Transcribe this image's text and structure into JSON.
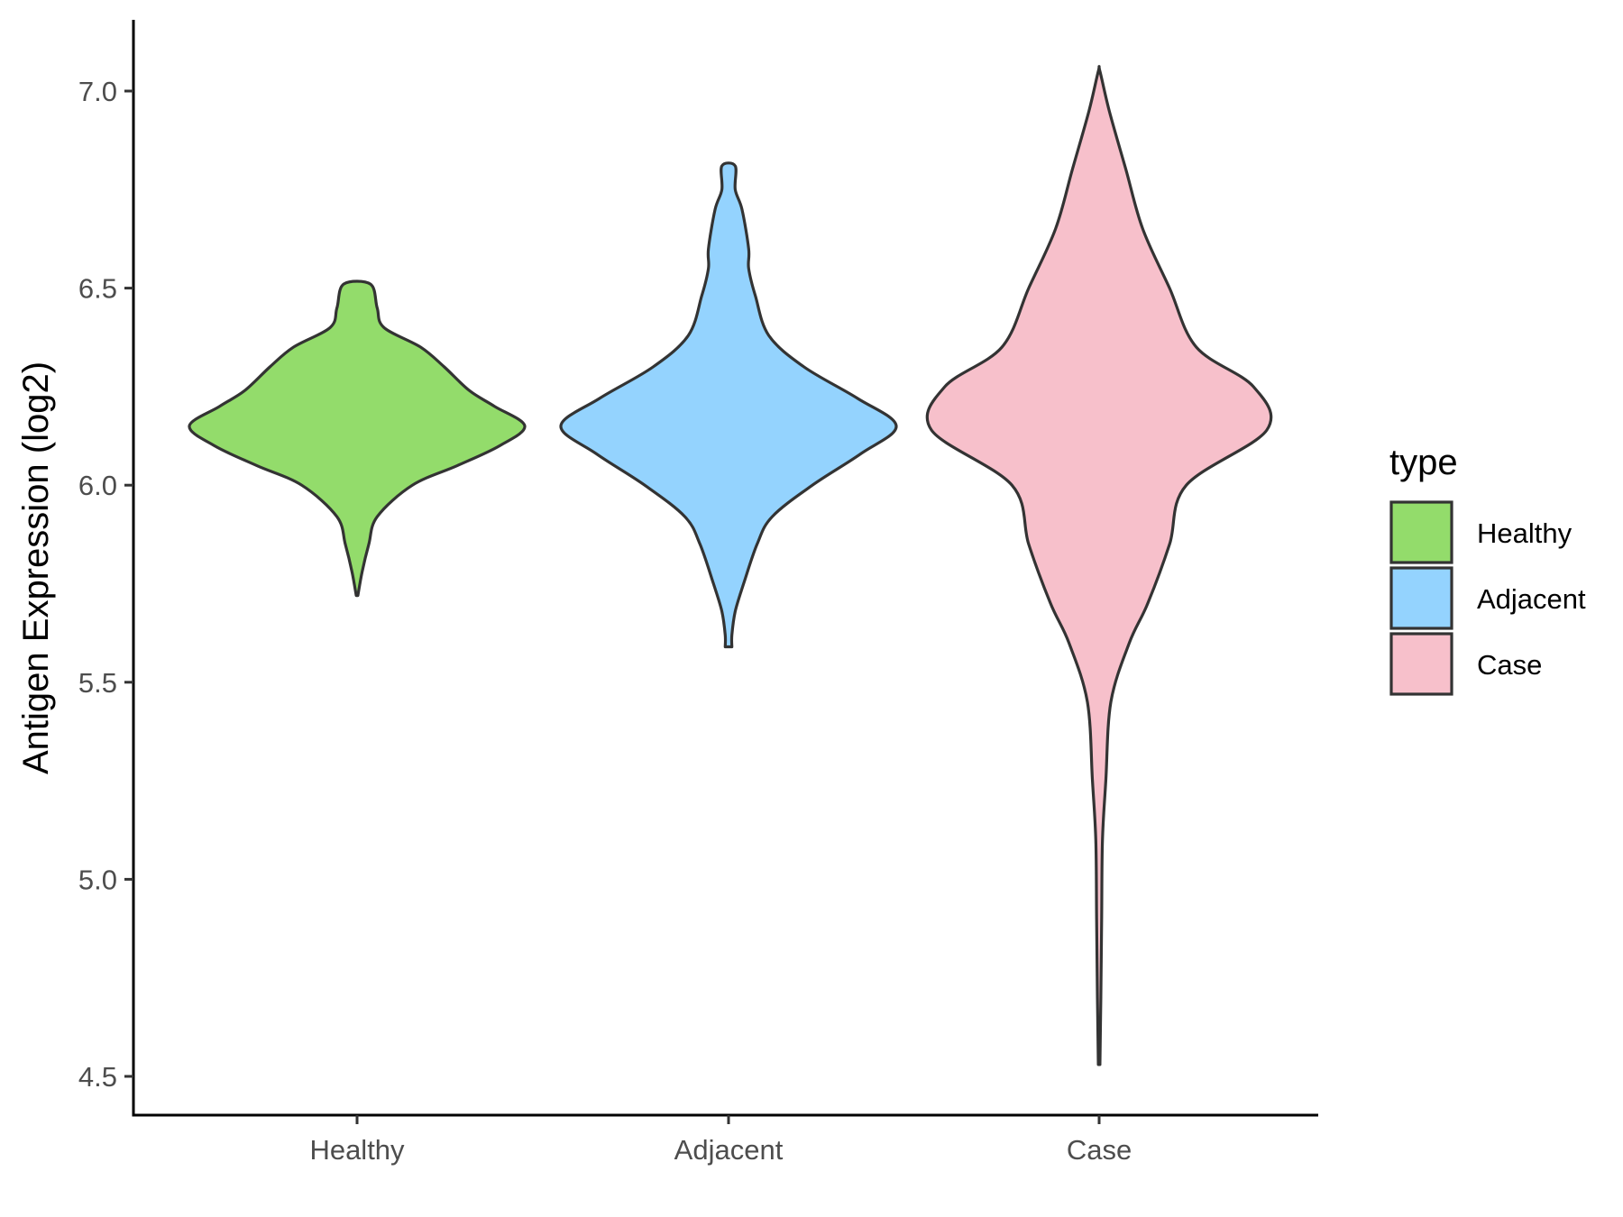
{
  "chart_data": {
    "type": "violin",
    "ylabel": "Antigen Expression (log2)",
    "xlabel": "",
    "ylim": [
      4.4,
      7.2
    ],
    "yticks": [
      4.5,
      5.0,
      5.5,
      6.0,
      6.5,
      7.0
    ],
    "ytick_labels": [
      "4.5",
      "5.0",
      "5.5",
      "6.0",
      "6.5",
      "7.0"
    ],
    "categories": [
      "Healthy",
      "Adjacent",
      "Case"
    ],
    "grid": false,
    "legend": {
      "title": "type",
      "position": "right",
      "entries": [
        {
          "label": "Healthy",
          "color": "#93dc6b"
        },
        {
          "label": "Adjacent",
          "color": "#94d3fe"
        },
        {
          "label": "Case",
          "color": "#f7c0cb"
        }
      ]
    },
    "series": [
      {
        "category": "Healthy",
        "color": "#93dc6b",
        "min": 5.72,
        "max": 6.51,
        "density_profile": [
          [
            5.72,
            0.005
          ],
          [
            5.78,
            0.03
          ],
          [
            5.85,
            0.07
          ],
          [
            5.92,
            0.12
          ],
          [
            6.0,
            0.33
          ],
          [
            6.05,
            0.6
          ],
          [
            6.1,
            0.85
          ],
          [
            6.15,
            1.0
          ],
          [
            6.2,
            0.82
          ],
          [
            6.24,
            0.67
          ],
          [
            6.3,
            0.52
          ],
          [
            6.35,
            0.38
          ],
          [
            6.4,
            0.16
          ],
          [
            6.45,
            0.12
          ],
          [
            6.51,
            0.08
          ]
        ]
      },
      {
        "category": "Adjacent",
        "color": "#94d3fe",
        "min": 5.59,
        "max": 6.81,
        "density_profile": [
          [
            5.59,
            0.02
          ],
          [
            5.62,
            0.02
          ],
          [
            5.68,
            0.04
          ],
          [
            5.75,
            0.09
          ],
          [
            5.85,
            0.17
          ],
          [
            5.92,
            0.26
          ],
          [
            6.0,
            0.5
          ],
          [
            6.08,
            0.79
          ],
          [
            6.15,
            1.0
          ],
          [
            6.22,
            0.77
          ],
          [
            6.3,
            0.45
          ],
          [
            6.38,
            0.24
          ],
          [
            6.48,
            0.16
          ],
          [
            6.55,
            0.12
          ],
          [
            6.6,
            0.12
          ],
          [
            6.7,
            0.08
          ],
          [
            6.75,
            0.04
          ],
          [
            6.81,
            0.04
          ]
        ]
      },
      {
        "category": "Case",
        "color": "#f7c0cb",
        "min": 4.53,
        "max": 7.05,
        "density_profile": [
          [
            4.53,
            0.005
          ],
          [
            4.7,
            0.01
          ],
          [
            4.9,
            0.015
          ],
          [
            5.1,
            0.02
          ],
          [
            5.25,
            0.04
          ],
          [
            5.45,
            0.07
          ],
          [
            5.6,
            0.18
          ],
          [
            5.7,
            0.29
          ],
          [
            5.85,
            0.42
          ],
          [
            6.0,
            0.52
          ],
          [
            6.14,
            1.0
          ],
          [
            6.25,
            0.92
          ],
          [
            6.35,
            0.58
          ],
          [
            6.5,
            0.42
          ],
          [
            6.65,
            0.26
          ],
          [
            6.8,
            0.16
          ],
          [
            6.95,
            0.06
          ],
          [
            7.05,
            0.005
          ]
        ]
      }
    ]
  }
}
